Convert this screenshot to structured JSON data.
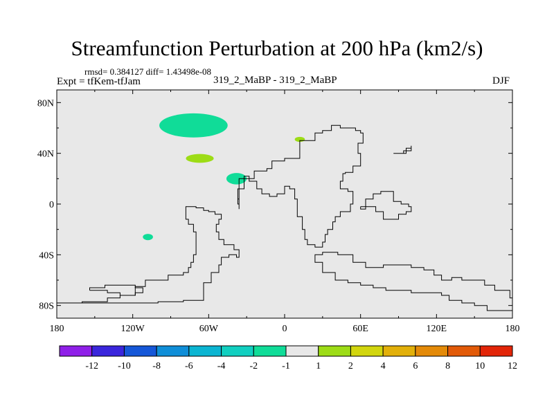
{
  "header": {
    "title": "Streamfunction Perturbation at 200 hPa (km2/s)",
    "stats": "rmsd= 0.384127 diff= 1.43498e-08",
    "experiment": "Expt = tfKem-tfJam",
    "case": "319_2_MaBP - 319_2_MaBP",
    "season": "DJF"
  },
  "chart_data": {
    "type": "heatmap",
    "title": "Streamfunction Perturbation at 200 hPa (km2/s)",
    "xlim": [
      -180,
      180
    ],
    "ylim": [
      -90,
      90
    ],
    "x_ticks": [
      {
        "value": -180,
        "label": "180"
      },
      {
        "value": -120,
        "label": "120W"
      },
      {
        "value": -60,
        "label": "60W"
      },
      {
        "value": 0,
        "label": "0"
      },
      {
        "value": 60,
        "label": "60E"
      },
      {
        "value": 120,
        "label": "120E"
      },
      {
        "value": 180,
        "label": "180"
      }
    ],
    "y_ticks": [
      {
        "value": 80,
        "label": "80N"
      },
      {
        "value": 40,
        "label": "40N"
      },
      {
        "value": 0,
        "label": "0"
      },
      {
        "value": -40,
        "label": "40S"
      },
      {
        "value": -80,
        "label": "80S"
      }
    ],
    "background_level_color": "#e8e8e8",
    "levels": [
      {
        "label": "-12",
        "color": "#8f1fe8"
      },
      {
        "label": "-10",
        "color": "#3a26dc"
      },
      {
        "label": "-8",
        "color": "#1557d8"
      },
      {
        "label": "-6",
        "color": "#0f8ed8"
      },
      {
        "label": "-4",
        "color": "#0bb5d2"
      },
      {
        "label": "-2",
        "color": "#11cfc0"
      },
      {
        "label": "-1",
        "color": "#10dc98"
      },
      {
        "label": "1",
        "color": "#e8e8e8"
      },
      {
        "label": "2",
        "color": "#9ddc16"
      },
      {
        "label": "4",
        "color": "#d2d60e"
      },
      {
        "label": "6",
        "color": "#e2b00a"
      },
      {
        "label": "8",
        "color": "#e48a08"
      },
      {
        "label": "10",
        "color": "#e25a08"
      },
      {
        "label": "12",
        "color": "#e22508"
      }
    ],
    "colorbar_boundaries": [
      "-12",
      "-10",
      "-8",
      "-6",
      "-4",
      "-2",
      "-1",
      "1",
      "2",
      "4",
      "6",
      "8",
      "10",
      "12"
    ],
    "anomalies": [
      {
        "lon": -72,
        "lat": 62,
        "rlon": 27,
        "rlat": 9.5,
        "color": "#10dc98"
      },
      {
        "lon": -67,
        "lat": 36,
        "rlon": 11,
        "rlat": 3.5,
        "color": "#9ddc16"
      },
      {
        "lon": -38,
        "lat": 20,
        "rlon": 8,
        "rlat": 4.5,
        "color": "#10dc98"
      },
      {
        "lon": 12,
        "lat": 51,
        "rlon": 4,
        "rlat": 2,
        "color": "#9ddc16"
      },
      {
        "lon": -108,
        "lat": -26,
        "rlon": 4,
        "rlat": 2.5,
        "color": "#10dc98"
      }
    ],
    "coastlines": [
      [
        [
          -180,
          -78
        ],
        [
          -150,
          -78
        ],
        [
          -125,
          -78
        ],
        [
          -100,
          -77
        ],
        [
          -80,
          -76
        ],
        [
          -64,
          -72
        ],
        [
          -64,
          -62
        ],
        [
          -58,
          -54
        ],
        [
          -52,
          -48
        ],
        [
          -50,
          -42
        ],
        [
          -44,
          -40
        ],
        [
          -38,
          -42
        ],
        [
          -36,
          -36
        ],
        [
          -40,
          -32
        ],
        [
          -48,
          -28
        ],
        [
          -52,
          -22
        ],
        [
          -54,
          -16
        ],
        [
          -52,
          -12
        ],
        [
          -50,
          -8
        ],
        [
          -55,
          -6
        ],
        [
          -60,
          -5
        ],
        [
          -64,
          -3
        ],
        [
          -70,
          -2
        ],
        [
          -76,
          -2
        ],
        [
          -78,
          -6
        ],
        [
          -78,
          -12
        ],
        [
          -76,
          -16
        ],
        [
          -72,
          -22
        ],
        [
          -70,
          -28
        ],
        [
          -70,
          -32
        ],
        [
          -70,
          -40
        ],
        [
          -72,
          -46
        ],
        [
          -74,
          -50
        ],
        [
          -76,
          -54
        ],
        [
          -80,
          -56
        ],
        [
          -92,
          -60
        ],
        [
          -110,
          -65
        ],
        [
          -118,
          -72
        ],
        [
          -130,
          -74
        ],
        [
          -140,
          -77
        ],
        [
          -160,
          -78
        ],
        [
          -180,
          -78
        ]
      ],
      [
        [
          -36,
          -4
        ],
        [
          -36,
          0
        ],
        [
          -37,
          4
        ],
        [
          -36,
          12
        ],
        [
          -32,
          20
        ],
        [
          -24,
          26
        ],
        [
          -14,
          28
        ],
        [
          -10,
          34
        ],
        [
          0,
          36
        ],
        [
          10,
          36
        ],
        [
          12,
          50
        ],
        [
          18,
          50
        ],
        [
          24,
          56
        ],
        [
          30,
          58
        ],
        [
          37,
          62
        ],
        [
          44,
          60
        ],
        [
          56,
          58
        ],
        [
          60,
          56
        ],
        [
          62,
          48
        ],
        [
          58,
          40
        ],
        [
          60,
          30
        ],
        [
          54,
          25
        ],
        [
          48,
          24
        ],
        [
          46,
          18
        ],
        [
          44,
          12
        ],
        [
          50,
          10
        ],
        [
          54,
          0
        ],
        [
          52,
          -6
        ],
        [
          44,
          -10
        ],
        [
          40,
          -14
        ],
        [
          38,
          -20
        ],
        [
          34,
          -24
        ],
        [
          32,
          -30
        ],
        [
          30,
          -34
        ],
        [
          24,
          -32
        ],
        [
          18,
          -28
        ],
        [
          16,
          -20
        ],
        [
          14,
          -10
        ],
        [
          10,
          -4
        ],
        [
          10,
          4
        ],
        [
          8,
          12
        ],
        [
          4,
          14
        ],
        [
          0,
          8
        ],
        [
          -6,
          6
        ],
        [
          -12,
          8
        ],
        [
          -18,
          12
        ],
        [
          -22,
          18
        ],
        [
          -28,
          22
        ],
        [
          -32,
          20
        ],
        [
          -36,
          12
        ],
        [
          -37,
          4
        ],
        [
          -36,
          -4
        ]
      ],
      [
        [
          60,
          -2
        ],
        [
          64,
          4
        ],
        [
          70,
          8
        ],
        [
          76,
          10
        ],
        [
          84,
          10
        ],
        [
          86,
          2
        ],
        [
          92,
          0
        ],
        [
          98,
          -2
        ],
        [
          100,
          -6
        ],
        [
          96,
          -8
        ],
        [
          90,
          -12
        ],
        [
          84,
          -12
        ],
        [
          78,
          -6
        ],
        [
          72,
          -2
        ],
        [
          64,
          -4
        ],
        [
          60,
          -2
        ]
      ],
      [
        [
          86,
          40
        ],
        [
          96,
          44
        ],
        [
          100,
          46
        ],
        [
          100,
          42
        ],
        [
          94,
          40
        ],
        [
          86,
          40
        ]
      ],
      [
        [
          128,
          -60
        ],
        [
          132,
          -58
        ],
        [
          140,
          -60
        ],
        [
          150,
          -60
        ],
        [
          158,
          -64
        ],
        [
          166,
          -68
        ],
        [
          178,
          -74
        ],
        [
          180,
          -84
        ],
        [
          172,
          -84
        ],
        [
          160,
          -80
        ],
        [
          150,
          -78
        ],
        [
          140,
          -76
        ],
        [
          130,
          -72
        ],
        [
          124,
          -70
        ],
        [
          110,
          -70
        ],
        [
          100,
          -68
        ],
        [
          90,
          -68
        ],
        [
          80,
          -66
        ],
        [
          70,
          -64
        ],
        [
          60,
          -62
        ],
        [
          50,
          -60
        ],
        [
          40,
          -54
        ],
        [
          30,
          -46
        ],
        [
          24,
          -40
        ],
        [
          30,
          -38
        ],
        [
          42,
          -40
        ],
        [
          54,
          -46
        ],
        [
          64,
          -50
        ],
        [
          78,
          -48
        ],
        [
          90,
          -48
        ],
        [
          100,
          -50
        ],
        [
          110,
          -52
        ],
        [
          118,
          -56
        ],
        [
          124,
          -60
        ],
        [
          128,
          -60
        ]
      ],
      [
        [
          -154,
          -68
        ],
        [
          -140,
          -70
        ],
        [
          -130,
          -72
        ],
        [
          -118,
          -70
        ],
        [
          -112,
          -66
        ],
        [
          -118,
          -64
        ],
        [
          -130,
          -64
        ],
        [
          -142,
          -66
        ],
        [
          -154,
          -68
        ]
      ]
    ]
  }
}
